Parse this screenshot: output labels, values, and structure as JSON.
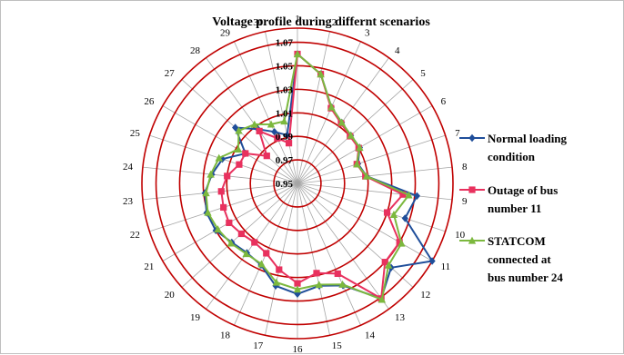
{
  "chart_data": {
    "type": "radar",
    "title": "Voltage profile during differnt scenarios",
    "categories": [
      "1",
      "2",
      "3",
      "4",
      "5",
      "6",
      "7",
      "8",
      "9",
      "10",
      "11",
      "12",
      "13",
      "14",
      "15",
      "16",
      "17",
      "18",
      "19",
      "20",
      "21",
      "22",
      "23",
      "24",
      "25",
      "26",
      "27",
      "28",
      "29",
      "30"
    ],
    "ticks": [
      "0.95",
      "0.97",
      "0.99",
      "1.01",
      "1.03",
      "1.05",
      "1.07"
    ],
    "rlim": [
      0.95,
      1.082
    ],
    "grid": true,
    "legend_position": "right",
    "series": [
      {
        "name": "Normal loading condition",
        "color": "#1F4E9A",
        "marker": "diamond",
        "legend_lines": [
          "Normal loading",
          "condition"
        ],
        "values": [
          1.06,
          1.045,
          1.021,
          1.014,
          1.011,
          1.011,
          1.004,
          1.009,
          1.052,
          1.046,
          1.082,
          1.057,
          1.071,
          1.045,
          1.039,
          1.044,
          1.039,
          1.026,
          1.023,
          1.025,
          1.03,
          1.031,
          1.029,
          1.023,
          1.017,
          1.001,
          1.021,
          1.007,
          0.998,
          0.992
        ]
      },
      {
        "name": "Outage of bus number 11",
        "color": "#E8315E",
        "marker": "square",
        "legend_lines": [
          "Outage of bus",
          "number 11"
        ],
        "values": [
          1.06,
          1.045,
          1.02,
          1.013,
          1.01,
          1.01,
          1.003,
          1.008,
          1.04,
          1.03,
          1.05,
          1.05,
          1.071,
          1.034,
          1.028,
          1.035,
          1.025,
          1.015,
          1.012,
          1.014,
          1.017,
          1.016,
          1.015,
          1.01,
          1.002,
          1.001,
          0.985,
          1.005,
          0.992,
          0.985
        ]
      },
      {
        "name": "STATCOM connected at bus number 24",
        "color": "#7CB83E",
        "marker": "triangle",
        "legend_lines": [
          "STATCOM",
          "connected at",
          "bus number 24"
        ],
        "values": [
          1.06,
          1.045,
          1.021,
          1.014,
          1.011,
          1.011,
          1.003,
          1.009,
          1.045,
          1.036,
          1.052,
          1.054,
          1.072,
          1.044,
          1.038,
          1.04,
          1.036,
          1.025,
          1.024,
          1.026,
          1.028,
          1.03,
          1.028,
          1.024,
          1.02,
          1.008,
          1.017,
          1.012,
          1.005,
          1.004
        ]
      }
    ]
  }
}
